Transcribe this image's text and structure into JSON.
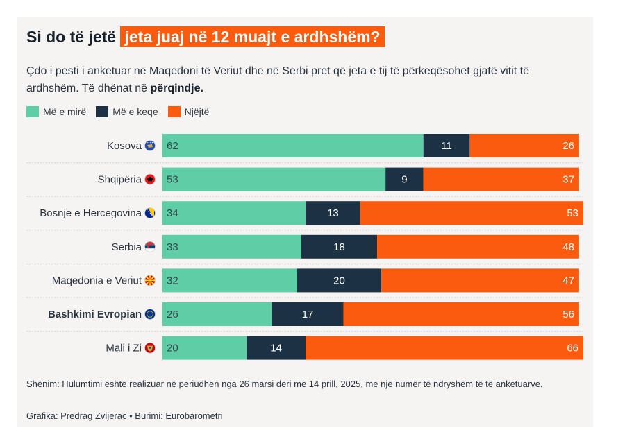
{
  "header": {
    "title_prefix": "Si do të jetë",
    "title_highlight": "jeta juaj në 12 muajt e ardhshëm?",
    "subtitle": "Çdo i pesti i anketuar në Maqedoni të Veriut dhe në Serbi pret që jeta e tij të përkeqësohet gjatë vitit të ardhshëm. Të dhënat në",
    "subtitle_bold": "përqindje."
  },
  "colors": {
    "better": "#5fcea6",
    "worse": "#1c3244",
    "same": "#fa5b0f",
    "title_highlight": "#fa5b0f"
  },
  "chart_data": {
    "type": "bar",
    "orientation": "horizontal",
    "stacked": true,
    "series_names": [
      "Më e mirë",
      "Më e keqe",
      "Njëjtë"
    ],
    "categories": [
      "Kosova",
      "Shqipëria",
      "Bosnje e Hercegovina",
      "Serbia",
      "Maqedonia e Veriut",
      "Bashkimi Evropian",
      "Mali i Zi"
    ],
    "highlight_category": "Bashkimi Evropian",
    "series": [
      {
        "name": "Më e mirë",
        "values": [
          62,
          53,
          34,
          33,
          32,
          26,
          20
        ]
      },
      {
        "name": "Më e keqe",
        "values": [
          11,
          9,
          13,
          18,
          20,
          17,
          14
        ]
      },
      {
        "name": "Njëjtë",
        "values": [
          26,
          37,
          53,
          48,
          47,
          56,
          66
        ]
      }
    ],
    "xlim": [
      0,
      100
    ],
    "legend": "top-left",
    "flags": [
      "kosovo-flag-icon",
      "albania-flag-icon",
      "bosnia-flag-icon",
      "serbia-flag-icon",
      "north-macedonia-flag-icon",
      "eu-flag-icon",
      "montenegro-flag-icon"
    ]
  },
  "footer": {
    "note": "Shënim: Hulumtimi është realizuar në periudhën nga 26 marsi deri më 14 prill, 2025, me një numër të ndryshëm të të anketuarve.",
    "credit": "Grafika: Predrag Zvijerac • Burimi: Eurobarometri"
  }
}
